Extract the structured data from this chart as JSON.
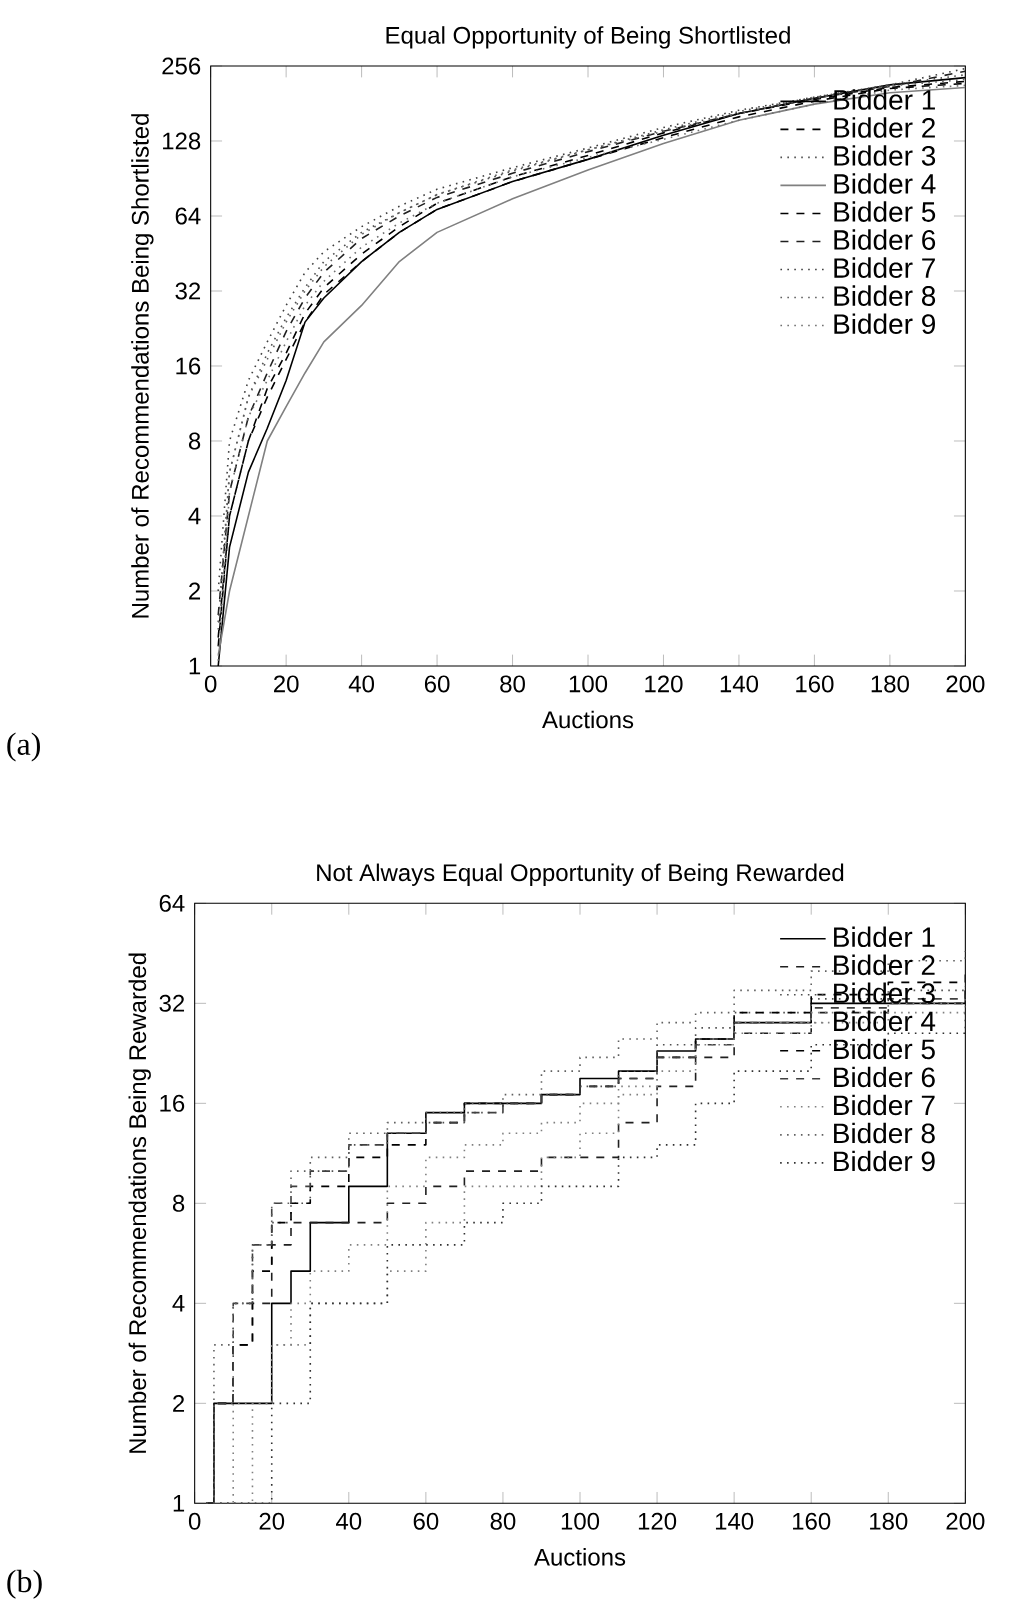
{
  "chart_data": [
    {
      "type": "line",
      "title": "Equal Opportunity of Being Shortlisted",
      "xlabel": "Auctions",
      "ylabel": "Number of Recommendations Being Shortlisted",
      "annotations": [
        "(a)"
      ],
      "log": true,
      "xlim": [
        0,
        200
      ],
      "ylim": [
        1,
        256
      ],
      "xticks": [
        0,
        20,
        40,
        60,
        80,
        100,
        120,
        140,
        160,
        180,
        200
      ],
      "yticks": [
        1,
        2,
        4,
        8,
        16,
        32,
        64,
        128,
        256
      ],
      "legend": "top right",
      "grid": false,
      "x": [
        2,
        5,
        10,
        15,
        20,
        25,
        30,
        40,
        50,
        60,
        80,
        100,
        120,
        140,
        160,
        180,
        200
      ],
      "series": [
        {
          "name": "Bidder 1",
          "color": "#000000",
          "line_style": "solid",
          "values": [
            1,
            3,
            6,
            9,
            14,
            24,
            30,
            42,
            55,
            68,
            88,
            108,
            135,
            165,
            190,
            215,
            230
          ]
        },
        {
          "name": "Bidder 2",
          "color": "#000000",
          "line_style": "dashed",
          "values": [
            1.2,
            4,
            8,
            13,
            18,
            26,
            33,
            45,
            58,
            72,
            92,
            112,
            138,
            165,
            188,
            210,
            222
          ]
        },
        {
          "name": "Bidder 3",
          "color": "#505050",
          "line_style": "dotted",
          "values": [
            1.5,
            6,
            12,
            18,
            25,
            33,
            42,
            55,
            66,
            78,
            97,
            118,
            142,
            168,
            192,
            215,
            236
          ]
        },
        {
          "name": "Bidder 4",
          "color": "#808080",
          "line_style": "solid",
          "values": [
            1.1,
            2,
            4,
            8,
            11,
            15,
            20,
            28,
            42,
            55,
            75,
            98,
            125,
            155,
            180,
            200,
            210
          ]
        },
        {
          "name": "Bidder 5",
          "color": "#000000",
          "line_style": "dashed",
          "values": [
            1.3,
            4,
            8,
            12,
            17,
            24,
            31,
            42,
            55,
            68,
            88,
            108,
            132,
            160,
            185,
            208,
            218
          ]
        },
        {
          "name": "Bidder 6",
          "color": "#202020",
          "line_style": "dashed",
          "values": [
            1.6,
            5,
            10,
            15,
            22,
            30,
            38,
            52,
            64,
            76,
            95,
            116,
            140,
            165,
            190,
            212,
            244
          ]
        },
        {
          "name": "Bidder 7",
          "color": "#404040",
          "line_style": "dotted",
          "values": [
            2,
            8,
            14,
            20,
            28,
            38,
            46,
            58,
            70,
            82,
            100,
            120,
            145,
            170,
            192,
            215,
            250
          ]
        },
        {
          "name": "Bidder 8",
          "color": "#606060",
          "line_style": "dotted",
          "values": [
            1.4,
            6,
            12,
            17,
            24,
            32,
            40,
            54,
            66,
            78,
            98,
            118,
            140,
            165,
            190,
            213,
            226
          ]
        },
        {
          "name": "Bidder 9",
          "color": "#707070",
          "line_style": "dotted",
          "values": [
            1.05,
            5,
            10,
            14,
            20,
            28,
            35,
            48,
            60,
            72,
            92,
            110,
            130,
            155,
            180,
            205,
            214
          ]
        }
      ]
    },
    {
      "type": "step",
      "title": "Not Always Equal Opportunity of Being Rewarded",
      "xlabel": "Auctions",
      "ylabel": "Number of Recommendations Being Rewarded",
      "annotations": [
        "(b)"
      ],
      "log": true,
      "xlim": [
        0,
        200
      ],
      "ylim": [
        1,
        64
      ],
      "xticks": [
        0,
        20,
        40,
        60,
        80,
        100,
        120,
        140,
        160,
        180,
        200
      ],
      "yticks": [
        1,
        2,
        4,
        8,
        16,
        32,
        64
      ],
      "legend": "top right",
      "grid": false,
      "x": [
        3,
        5,
        10,
        15,
        20,
        25,
        30,
        40,
        50,
        60,
        70,
        80,
        90,
        100,
        110,
        120,
        130,
        140,
        160,
        180,
        200
      ],
      "series": [
        {
          "name": "Bidder 1",
          "color": "#000000",
          "line_style": "solid",
          "values": [
            1,
            2,
            2,
            2,
            4,
            5,
            7,
            9,
            13,
            15,
            16,
            16,
            17,
            19,
            20,
            23,
            25,
            28,
            32,
            32,
            35
          ]
        },
        {
          "name": "Bidder 2",
          "color": "#202020",
          "line_style": "dashed",
          "values": [
            1,
            2,
            3,
            4,
            6,
            7,
            7,
            7,
            8,
            9,
            10,
            10,
            11,
            11,
            14,
            18,
            22,
            26,
            30,
            32,
            37
          ]
        },
        {
          "name": "Bidder 3",
          "color": "#505050",
          "line_style": "dotted",
          "values": [
            1,
            2,
            4,
            6,
            7,
            8,
            10,
            12,
            13,
            14,
            15,
            16,
            17,
            18,
            20,
            24,
            27,
            30,
            33,
            35,
            36
          ]
        },
        {
          "name": "Bidder 4",
          "color": "#808080",
          "line_style": "dotted",
          "values": [
            1,
            1,
            2,
            2,
            3,
            3,
            4,
            4,
            5,
            7,
            9,
            9,
            11,
            13,
            17,
            22,
            25,
            26,
            28,
            30,
            34
          ]
        },
        {
          "name": "Bidder 5",
          "color": "#000000",
          "line_style": "dashed",
          "values": [
            1,
            2,
            3,
            5,
            7,
            8,
            9,
            11,
            12,
            14,
            16,
            16,
            17,
            18,
            19,
            22,
            25,
            30,
            34,
            37,
            40
          ]
        },
        {
          "name": "Bidder 6",
          "color": "#404040",
          "line_style": "dashed",
          "values": [
            1,
            2,
            4,
            6,
            8,
            9,
            10,
            12,
            13,
            14,
            15,
            16,
            17,
            18,
            19,
            22,
            24,
            28,
            31,
            33,
            34
          ]
        },
        {
          "name": "Bidder 7",
          "color": "#808080",
          "line_style": "dotted",
          "values": [
            1,
            1,
            1,
            2,
            3,
            4,
            5,
            6,
            9,
            11,
            12,
            13,
            14,
            16,
            18,
            20,
            24,
            28,
            30,
            32,
            33
          ]
        },
        {
          "name": "Bidder 8",
          "color": "#606060",
          "line_style": "dotted",
          "values": [
            1,
            3,
            4,
            6,
            8,
            10,
            11,
            13,
            14,
            15,
            16,
            17,
            20,
            22,
            25,
            28,
            30,
            35,
            40,
            43,
            46
          ]
        },
        {
          "name": "Bidder 9",
          "color": "#303030",
          "line_style": "dotted",
          "values": [
            1,
            1,
            1,
            1,
            2,
            2,
            4,
            4,
            6,
            6,
            7,
            8,
            9,
            9,
            11,
            12,
            16,
            20,
            24,
            26,
            30
          ]
        }
      ]
    }
  ]
}
